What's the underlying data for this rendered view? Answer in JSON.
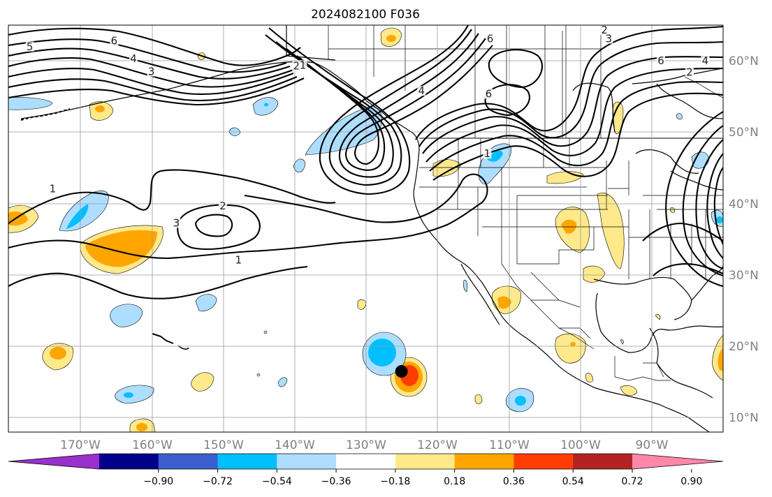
{
  "title": "2024082100 F036",
  "map": {
    "lon_range": [
      -180,
      -80
    ],
    "lat_range": [
      8,
      65
    ],
    "lon_ticks": [
      "170°W",
      "160°W",
      "150°W",
      "140°W",
      "130°W",
      "120°W",
      "110°W",
      "100°W",
      "90°W"
    ],
    "lat_ticks": [
      "10°N",
      "20°N",
      "30°N",
      "40°N",
      "50°N",
      "60°N"
    ],
    "grid": true,
    "projection": "PlateCarree",
    "marker": {
      "name": "storm-center-marker",
      "lon": -125,
      "lat": 16.5,
      "color": "#000000"
    },
    "contour_labels": [
      {
        "text": "5",
        "lon": -177,
        "lat": 61.7
      },
      {
        "text": "6",
        "lon": -165.2,
        "lat": 62.5
      },
      {
        "text": "4",
        "lon": -162.5,
        "lat": 60
      },
      {
        "text": "3",
        "lon": -160,
        "lat": 58.2
      },
      {
        "text": "2",
        "lon": -139.7,
        "lat": 59
      },
      {
        "text": "1",
        "lon": -138.8,
        "lat": 59.1
      },
      {
        "text": "4",
        "lon": -122.2,
        "lat": 55.5
      },
      {
        "text": "6",
        "lon": -112.6,
        "lat": 62.8
      },
      {
        "text": "6",
        "lon": -112.8,
        "lat": 55.1
      },
      {
        "text": "2",
        "lon": -96.6,
        "lat": 64
      },
      {
        "text": "3",
        "lon": -96,
        "lat": 62.8
      },
      {
        "text": "6",
        "lon": -88.7,
        "lat": 59.7
      },
      {
        "text": "2",
        "lon": -84.7,
        "lat": 58.1
      },
      {
        "text": "4",
        "lon": -82.5,
        "lat": 59.7
      },
      {
        "text": "1",
        "lon": -173.8,
        "lat": 41.8
      },
      {
        "text": "2",
        "lon": -150,
        "lat": 39.4
      },
      {
        "text": "3",
        "lon": -156.5,
        "lat": 37
      },
      {
        "text": "1",
        "lon": -147.8,
        "lat": 31.8
      },
      {
        "text": "1",
        "lon": -113,
        "lat": 46.7
      }
    ],
    "colors": {
      "yellow": "#ffe98b",
      "orange": "#ffa500",
      "red": "#ff3d00",
      "lightblue": "#aedeff",
      "cyan": "#00bfff",
      "land_outline": "#000000",
      "grid": "#999999"
    }
  },
  "colorbar": {
    "ticks": [
      "−0.90",
      "−0.72",
      "−0.54",
      "−0.36",
      "−0.18",
      "0.18",
      "0.36",
      "0.54",
      "0.72",
      "0.90"
    ],
    "colors": [
      "#9932cc",
      "#00008b",
      "#3a5fcd",
      "#00bfff",
      "#aedeff",
      "#ffffff",
      "#ffe98b",
      "#ffa500",
      "#ff3d00",
      "#b22222",
      "#ff88aa"
    ],
    "extend": "both"
  }
}
